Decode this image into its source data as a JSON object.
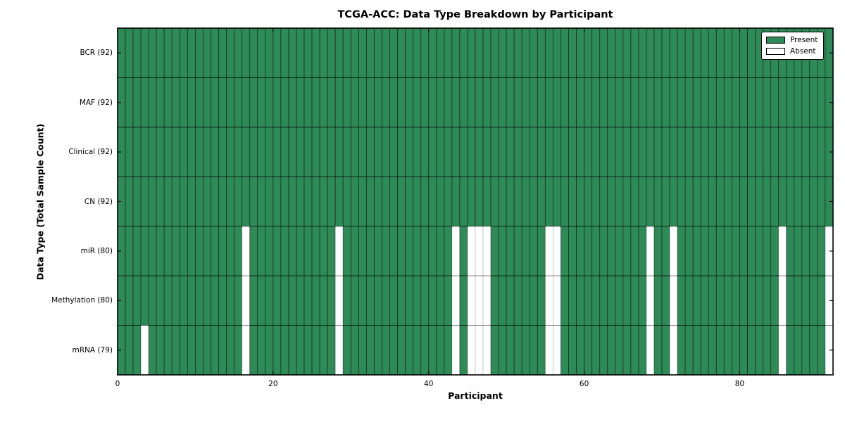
{
  "chart_data": {
    "type": "heatmap",
    "title": "TCGA-ACC: Data Type Breakdown by Participant",
    "xlabel": "Participant",
    "ylabel": "Data Type (Total Sample Count)",
    "n_participants": 92,
    "x_ticks": [
      0,
      20,
      40,
      60,
      80
    ],
    "rows": [
      {
        "label": "BCR (92)",
        "total": 92,
        "absent_participants": []
      },
      {
        "label": "MAF (92)",
        "total": 92,
        "absent_participants": []
      },
      {
        "label": "Clinical (92)",
        "total": 92,
        "absent_participants": []
      },
      {
        "label": "CN (92)",
        "total": 92,
        "absent_participants": []
      },
      {
        "label": "miR (80)",
        "total": 80,
        "absent_participants": [
          16,
          28,
          43,
          45,
          46,
          47,
          55,
          56,
          68,
          71,
          85,
          91
        ]
      },
      {
        "label": "Methylation (80)",
        "total": 80,
        "absent_participants": [
          16,
          28,
          43,
          45,
          46,
          47,
          55,
          56,
          68,
          71,
          85,
          91
        ]
      },
      {
        "label": "mRNA (79)",
        "total": 79,
        "absent_participants": [
          3,
          16,
          28,
          43,
          45,
          46,
          47,
          55,
          56,
          68,
          71,
          85,
          91
        ]
      }
    ],
    "legend": [
      {
        "label": "Present",
        "color": "#2e8b57"
      },
      {
        "label": "Absent",
        "color": "#ffffff"
      }
    ],
    "colors": {
      "present": "#2e8b57",
      "absent": "#ffffff",
      "spine": "#000000"
    }
  }
}
